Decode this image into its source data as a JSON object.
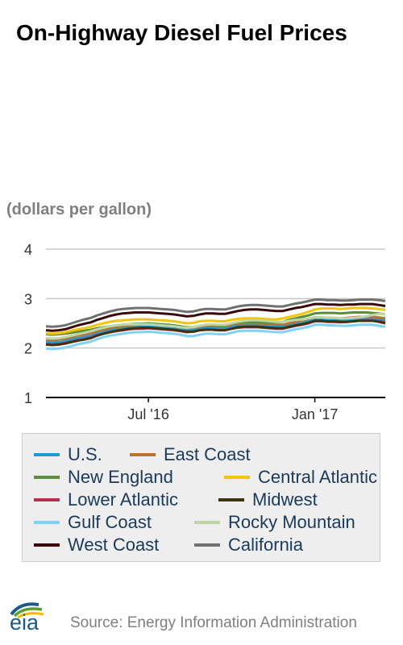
{
  "title": "On-Highway Diesel Fuel Prices",
  "unit_label": "(dollars per gallon)",
  "source": "Source: Energy Information Administration",
  "logo_text": "eia",
  "chart_data": {
    "type": "line",
    "ylabel": "(dollars per gallon)",
    "ylim": [
      1,
      4
    ],
    "yticks": [
      1,
      2,
      3,
      4
    ],
    "x_tick_labels": [
      {
        "label": "Jul '16",
        "index": 16
      },
      {
        "label": "Jan '17",
        "index": 42
      }
    ],
    "grid": "horizontal",
    "legend_position": "bottom",
    "series": [
      {
        "name": "U.S.",
        "color": "#1f9bd1",
        "values": [
          2.12,
          2.11,
          2.12,
          2.14,
          2.17,
          2.2,
          2.22,
          2.25,
          2.3,
          2.33,
          2.36,
          2.38,
          2.4,
          2.42,
          2.43,
          2.43,
          2.44,
          2.43,
          2.42,
          2.41,
          2.4,
          2.38,
          2.36,
          2.37,
          2.4,
          2.41,
          2.41,
          2.4,
          2.4,
          2.43,
          2.45,
          2.46,
          2.46,
          2.46,
          2.45,
          2.44,
          2.43,
          2.43,
          2.46,
          2.49,
          2.51,
          2.54,
          2.58,
          2.58,
          2.57,
          2.57,
          2.56,
          2.57,
          2.58,
          2.59,
          2.59,
          2.59,
          2.58,
          2.56
        ]
      },
      {
        "name": "East Coast",
        "color": "#b87333",
        "values": [
          2.17,
          2.16,
          2.17,
          2.19,
          2.22,
          2.25,
          2.27,
          2.3,
          2.34,
          2.37,
          2.4,
          2.42,
          2.44,
          2.46,
          2.47,
          2.47,
          2.48,
          2.47,
          2.46,
          2.45,
          2.44,
          2.42,
          2.4,
          2.41,
          2.44,
          2.45,
          2.45,
          2.44,
          2.44,
          2.47,
          2.49,
          2.5,
          2.5,
          2.5,
          2.49,
          2.48,
          2.47,
          2.47,
          2.5,
          2.53,
          2.56,
          2.59,
          2.62,
          2.62,
          2.61,
          2.61,
          2.6,
          2.61,
          2.62,
          2.63,
          2.63,
          2.63,
          2.62,
          2.6
        ]
      },
      {
        "name": "New England",
        "color": "#5a8f3a",
        "values": [
          2.28,
          2.27,
          2.28,
          2.29,
          2.31,
          2.33,
          2.35,
          2.37,
          2.4,
          2.42,
          2.44,
          2.46,
          2.47,
          2.48,
          2.49,
          2.49,
          2.5,
          2.49,
          2.48,
          2.47,
          2.46,
          2.44,
          2.42,
          2.42,
          2.45,
          2.47,
          2.47,
          2.46,
          2.46,
          2.49,
          2.51,
          2.53,
          2.53,
          2.53,
          2.52,
          2.52,
          2.52,
          2.53,
          2.57,
          2.6,
          2.63,
          2.66,
          2.7,
          2.71,
          2.71,
          2.71,
          2.7,
          2.71,
          2.72,
          2.72,
          2.72,
          2.71,
          2.7,
          2.68
        ]
      },
      {
        "name": "Central Atlantic",
        "color": "#f5c400",
        "values": [
          2.3,
          2.29,
          2.3,
          2.32,
          2.35,
          2.38,
          2.4,
          2.43,
          2.47,
          2.5,
          2.53,
          2.55,
          2.56,
          2.57,
          2.58,
          2.58,
          2.58,
          2.57,
          2.56,
          2.55,
          2.54,
          2.52,
          2.5,
          2.51,
          2.54,
          2.55,
          2.55,
          2.54,
          2.54,
          2.57,
          2.59,
          2.6,
          2.6,
          2.6,
          2.59,
          2.58,
          2.58,
          2.6,
          2.63,
          2.66,
          2.69,
          2.73,
          2.78,
          2.8,
          2.8,
          2.8,
          2.79,
          2.8,
          2.81,
          2.81,
          2.81,
          2.8,
          2.79,
          2.77
        ]
      },
      {
        "name": "Lower Atlantic",
        "color": "#b03050",
        "values": [
          2.08,
          2.07,
          2.08,
          2.1,
          2.13,
          2.16,
          2.18,
          2.21,
          2.26,
          2.29,
          2.32,
          2.34,
          2.36,
          2.38,
          2.39,
          2.39,
          2.4,
          2.39,
          2.38,
          2.37,
          2.36,
          2.34,
          2.32,
          2.33,
          2.36,
          2.37,
          2.37,
          2.36,
          2.36,
          2.39,
          2.41,
          2.42,
          2.42,
          2.42,
          2.41,
          2.4,
          2.39,
          2.39,
          2.42,
          2.45,
          2.47,
          2.5,
          2.54,
          2.54,
          2.53,
          2.53,
          2.52,
          2.53,
          2.54,
          2.55,
          2.55,
          2.55,
          2.54,
          2.52
        ]
      },
      {
        "name": "Midwest",
        "color": "#3f3212",
        "values": [
          2.07,
          2.06,
          2.07,
          2.09,
          2.12,
          2.15,
          2.17,
          2.2,
          2.25,
          2.29,
          2.32,
          2.35,
          2.37,
          2.39,
          2.4,
          2.41,
          2.41,
          2.4,
          2.39,
          2.38,
          2.37,
          2.35,
          2.33,
          2.33,
          2.36,
          2.37,
          2.37,
          2.36,
          2.36,
          2.39,
          2.42,
          2.43,
          2.43,
          2.43,
          2.42,
          2.41,
          2.4,
          2.4,
          2.43,
          2.46,
          2.48,
          2.51,
          2.55,
          2.55,
          2.54,
          2.54,
          2.53,
          2.53,
          2.54,
          2.55,
          2.55,
          2.55,
          2.53,
          2.5
        ]
      },
      {
        "name": "Gulf Coast",
        "color": "#7fd4f5",
        "values": [
          1.99,
          1.98,
          1.99,
          2.01,
          2.04,
          2.08,
          2.1,
          2.13,
          2.18,
          2.22,
          2.25,
          2.27,
          2.29,
          2.31,
          2.32,
          2.32,
          2.33,
          2.32,
          2.31,
          2.3,
          2.29,
          2.27,
          2.24,
          2.24,
          2.27,
          2.29,
          2.29,
          2.28,
          2.28,
          2.31,
          2.34,
          2.35,
          2.35,
          2.35,
          2.34,
          2.33,
          2.32,
          2.32,
          2.35,
          2.38,
          2.4,
          2.43,
          2.47,
          2.47,
          2.46,
          2.46,
          2.45,
          2.45,
          2.46,
          2.47,
          2.47,
          2.47,
          2.45,
          2.43
        ]
      },
      {
        "name": "Rocky Mountain",
        "color": "#bcd7a5",
        "values": [
          2.2,
          2.19,
          2.2,
          2.22,
          2.25,
          2.28,
          2.31,
          2.34,
          2.38,
          2.41,
          2.44,
          2.46,
          2.47,
          2.48,
          2.48,
          2.48,
          2.48,
          2.47,
          2.46,
          2.45,
          2.44,
          2.42,
          2.41,
          2.42,
          2.45,
          2.47,
          2.48,
          2.47,
          2.47,
          2.5,
          2.53,
          2.55,
          2.56,
          2.56,
          2.55,
          2.54,
          2.53,
          2.53,
          2.55,
          2.57,
          2.58,
          2.6,
          2.62,
          2.62,
          2.61,
          2.61,
          2.6,
          2.6,
          2.61,
          2.62,
          2.64,
          2.67,
          2.69,
          2.68
        ]
      },
      {
        "name": "West Coast",
        "color": "#3a0a0a",
        "values": [
          2.36,
          2.35,
          2.36,
          2.38,
          2.42,
          2.46,
          2.49,
          2.52,
          2.57,
          2.61,
          2.65,
          2.68,
          2.7,
          2.71,
          2.72,
          2.72,
          2.72,
          2.71,
          2.7,
          2.69,
          2.68,
          2.66,
          2.64,
          2.65,
          2.68,
          2.7,
          2.7,
          2.69,
          2.69,
          2.72,
          2.75,
          2.77,
          2.78,
          2.78,
          2.77,
          2.76,
          2.75,
          2.75,
          2.78,
          2.81,
          2.83,
          2.86,
          2.89,
          2.89,
          2.88,
          2.88,
          2.87,
          2.88,
          2.88,
          2.89,
          2.89,
          2.89,
          2.87,
          2.85
        ]
      },
      {
        "name": "California",
        "color": "#707070",
        "values": [
          2.44,
          2.43,
          2.44,
          2.46,
          2.5,
          2.54,
          2.58,
          2.61,
          2.66,
          2.7,
          2.74,
          2.77,
          2.79,
          2.8,
          2.81,
          2.81,
          2.81,
          2.8,
          2.79,
          2.78,
          2.77,
          2.75,
          2.73,
          2.74,
          2.77,
          2.79,
          2.79,
          2.78,
          2.78,
          2.81,
          2.84,
          2.86,
          2.87,
          2.87,
          2.86,
          2.85,
          2.84,
          2.84,
          2.87,
          2.9,
          2.92,
          2.95,
          2.98,
          2.98,
          2.97,
          2.97,
          2.96,
          2.96,
          2.97,
          2.98,
          2.98,
          2.98,
          2.97,
          2.95
        ]
      }
    ]
  }
}
